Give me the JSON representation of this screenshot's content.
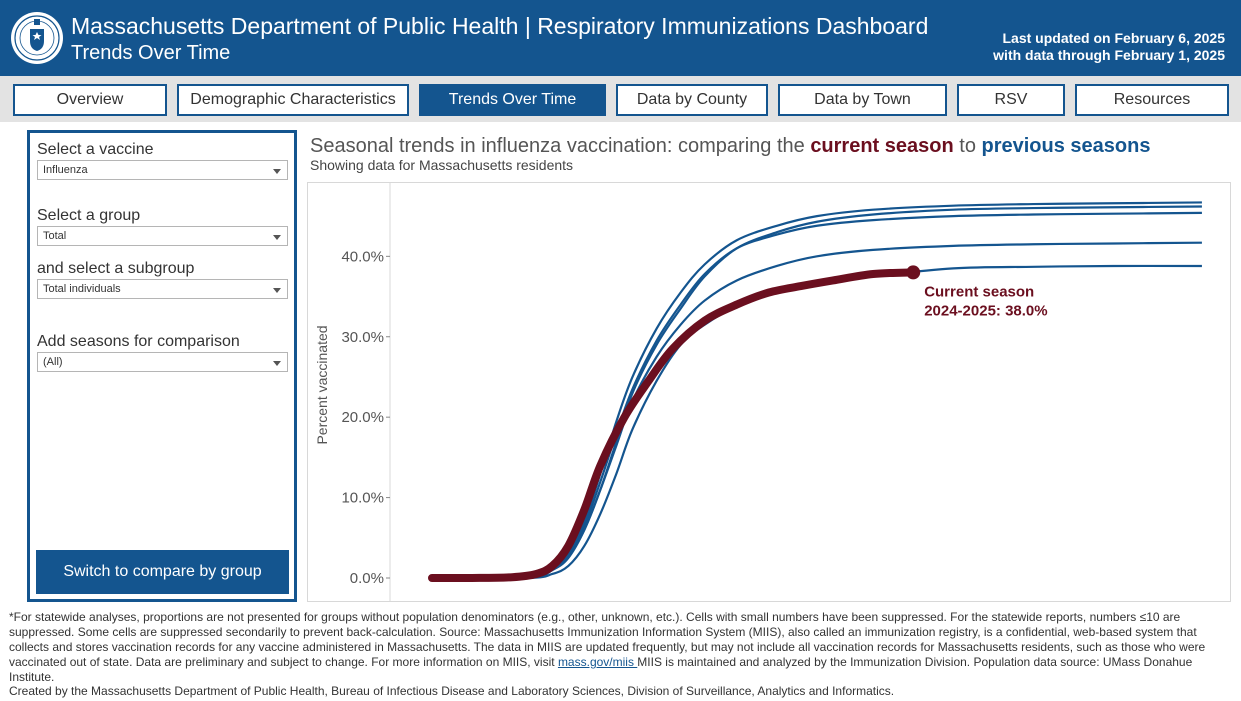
{
  "header": {
    "title": "Massachusetts Department of Public Health | Respiratory Immunizations Dashboard",
    "subtitle": "Trends Over Time",
    "updated_line1": "Last updated on February 6, 2025",
    "updated_line2": "with data through February 1, 2025"
  },
  "tabs": [
    {
      "label": "Overview",
      "active": false
    },
    {
      "label": "Demographic Characteristics",
      "active": false
    },
    {
      "label": "Trends Over Time",
      "active": true
    },
    {
      "label": "Data by County",
      "active": false
    },
    {
      "label": "Data by Town",
      "active": false
    },
    {
      "label": "RSV",
      "active": false
    },
    {
      "label": "Resources",
      "active": false
    }
  ],
  "filters": {
    "vaccine_label": "Select a vaccine",
    "vaccine_value": "Influenza",
    "group_label": "Select a group",
    "group_value": "Total",
    "subgroup_label": "and select a subgroup",
    "subgroup_value": "Total individuals",
    "seasons_label": "Add seasons for comparison",
    "seasons_value": "(All)",
    "switch_button": "Switch to compare by group"
  },
  "chart_header": {
    "title_prefix": "Seasonal trends in influenza vaccination: comparing the ",
    "title_current": "current season",
    "title_mid": " to ",
    "title_previous": "previous seasons",
    "subtitle": "Showing data for Massachusetts residents"
  },
  "colors": {
    "brand": "#14558f",
    "current": "#6b0f1f",
    "previous": "#14558f"
  },
  "chart_data": {
    "type": "line",
    "ylabel": "Percent vaccinated",
    "ylim": [
      0,
      48
    ],
    "xlim": [
      0,
      100
    ],
    "yticks": [
      0,
      10,
      20,
      30,
      40
    ],
    "ytick_labels": [
      "0.0%",
      "10.0%",
      "20.0%",
      "30.0%",
      "40.0%"
    ],
    "grid": false,
    "annotation": {
      "line1": "Current season",
      "line2": "2024-2025: 38.0%"
    },
    "current_series": {
      "name": "2024-2025",
      "x": [
        0,
        5,
        10,
        13,
        15,
        17,
        19,
        21,
        24,
        27,
        30,
        34,
        38,
        42,
        46,
        50,
        55,
        60
      ],
      "y": [
        0,
        0,
        0.1,
        0.5,
        1.5,
        4,
        8.5,
        14,
        20,
        24.5,
        28.5,
        32,
        34,
        35.5,
        36.3,
        37,
        37.8,
        38
      ]
    },
    "previous_series": [
      {
        "x": [
          0,
          12,
          15,
          17,
          19,
          21,
          23,
          25,
          28,
          31,
          34,
          38,
          43,
          48,
          55,
          65,
          75,
          85,
          96
        ],
        "y": [
          0,
          0.1,
          1,
          3,
          7,
          13,
          19.5,
          25,
          31,
          35.5,
          39,
          42,
          43.8,
          45,
          45.8,
          46.3,
          46.5,
          46.6,
          46.7
        ]
      },
      {
        "x": [
          0,
          12,
          15,
          17,
          19,
          21,
          23,
          25,
          28,
          31,
          34,
          38,
          43,
          48,
          55,
          65,
          75,
          85,
          96
        ],
        "y": [
          0,
          0.1,
          1,
          2.5,
          6,
          11,
          17,
          23,
          29,
          33.5,
          37.5,
          41,
          43,
          44.3,
          45.2,
          45.8,
          46,
          46.1,
          46.2
        ]
      },
      {
        "x": [
          0,
          12,
          15,
          17,
          19,
          21,
          23,
          25,
          28,
          31,
          34,
          38,
          43,
          48,
          55,
          65,
          75,
          85,
          96
        ],
        "y": [
          0,
          0.1,
          1,
          2.8,
          6.5,
          12,
          18,
          23.5,
          29.5,
          34,
          37.8,
          41,
          42.7,
          43.8,
          44.5,
          45,
          45.2,
          45.3,
          45.4
        ]
      },
      {
        "x": [
          0,
          12,
          15,
          17,
          19,
          21,
          23,
          25,
          28,
          31,
          34,
          38,
          43,
          48,
          55,
          65,
          75,
          85,
          96
        ],
        "y": [
          0,
          0.1,
          1,
          2.6,
          6,
          11,
          16.5,
          22,
          27.5,
          31.5,
          34.5,
          37,
          38.8,
          40,
          40.8,
          41.3,
          41.5,
          41.6,
          41.7
        ]
      },
      {
        "x": [
          0,
          12,
          15,
          17,
          19,
          21,
          23,
          25,
          28,
          31,
          34,
          38,
          43,
          48,
          55,
          65,
          75,
          85,
          96
        ],
        "y": [
          0,
          0,
          0.5,
          1.5,
          4,
          8,
          13,
          18.5,
          24.5,
          29,
          31.5,
          33.8,
          35.5,
          36.5,
          37.5,
          38.5,
          38.7,
          38.8,
          38.8
        ]
      }
    ]
  },
  "footer": {
    "note": "*For statewide analyses, proportions are not presented for groups without population denominators (e.g., other, unknown, etc.). Cells with small numbers have been suppressed. For the statewide reports, numbers ≤10 are suppressed. Some cells are suppressed secondarily to prevent back-calculation. Source: Massachusetts Immunization Information System (MIIS), also called an immunization registry, is a confidential, web-based system that collects and stores vaccination records for any vaccine administered in Massachusetts. The data in MIIS are updated frequently, but may not include all vaccination records for Massachusetts residents, such as those who were vaccinated out of state. Data are preliminary and subject to change. For more information on MIIS, visit ",
    "link_text": "mass.gov/miis ",
    "note_after": " MIIS is maintained and analyzed by the Immunization Division. Population data source: UMass Donahue Institute.",
    "credit": "Created by the Massachusetts Department of Public Health, Bureau of Infectious Disease and Laboratory Sciences, Division of Surveillance, Analytics and Informatics."
  }
}
